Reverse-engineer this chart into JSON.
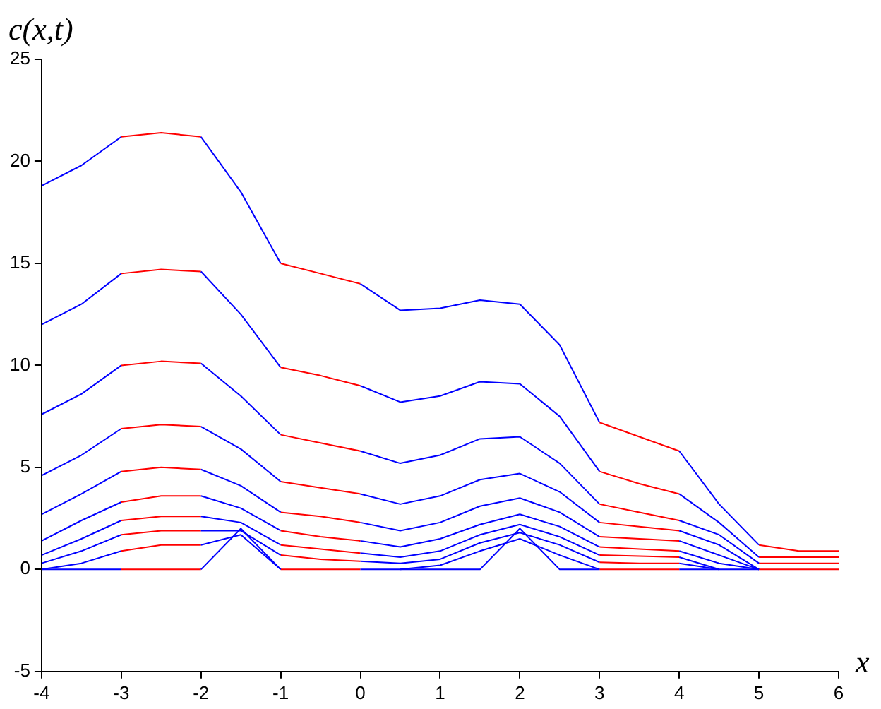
{
  "chart_data": {
    "type": "line",
    "xlabel": "x",
    "ylabel": "c(x,t)",
    "x": [
      -4,
      -3.5,
      -3,
      -2.5,
      -2,
      -1.5,
      -1,
      -0.5,
      0,
      0.5,
      1,
      1.5,
      2,
      2.5,
      3,
      3.5,
      4,
      4.5,
      5,
      5.5,
      6
    ],
    "xlim": [
      -4,
      6
    ],
    "xticks": [
      -4,
      -3,
      -2,
      -1,
      0,
      1,
      2,
      3,
      4,
      5,
      6
    ],
    "ylim": [
      -5,
      25
    ],
    "yticks": [
      -5,
      0,
      5,
      10,
      15,
      20,
      25
    ],
    "grid": false,
    "legend": false,
    "marker": "none",
    "line_style": "solid",
    "series": [
      {
        "color": "#0000ff",
        "values": [
          18.8,
          19.8,
          21.2,
          null,
          21.2,
          18.5,
          15.0,
          null,
          14.0,
          12.7,
          12.8,
          13.2,
          13.0,
          11.0,
          7.2,
          null,
          5.8,
          3.2,
          1.2,
          null,
          null
        ]
      },
      {
        "color": "#ff0000",
        "values": [
          null,
          null,
          21.2,
          21.4,
          21.2,
          null,
          15.0,
          14.5,
          14.0,
          null,
          null,
          null,
          null,
          null,
          7.2,
          6.5,
          5.8,
          null,
          1.2,
          0.9,
          0.9
        ]
      },
      {
        "color": "#0000ff",
        "values": [
          12.0,
          13.0,
          14.5,
          null,
          14.6,
          12.5,
          9.9,
          null,
          9.0,
          8.2,
          8.5,
          9.2,
          9.1,
          7.5,
          4.8,
          null,
          3.7,
          2.3,
          0.6,
          null,
          null
        ]
      },
      {
        "color": "#ff0000",
        "values": [
          null,
          null,
          14.5,
          14.7,
          14.6,
          null,
          9.9,
          9.5,
          9.0,
          null,
          null,
          null,
          null,
          null,
          4.8,
          4.2,
          3.7,
          null,
          0.6,
          0.6,
          0.6
        ]
      },
      {
        "color": "#0000ff",
        "values": [
          7.6,
          8.6,
          10.0,
          null,
          10.1,
          8.5,
          6.6,
          null,
          5.8,
          5.2,
          5.6,
          6.4,
          6.5,
          5.2,
          3.2,
          null,
          2.4,
          1.7,
          0.3,
          null,
          null
        ]
      },
      {
        "color": "#ff0000",
        "values": [
          null,
          null,
          10.0,
          10.2,
          10.1,
          null,
          6.6,
          6.2,
          5.8,
          null,
          null,
          null,
          null,
          null,
          3.2,
          2.8,
          2.4,
          null,
          0.3,
          0.3,
          0.3
        ]
      },
      {
        "color": "#0000ff",
        "values": [
          4.6,
          5.6,
          6.9,
          null,
          7.0,
          5.9,
          4.3,
          null,
          3.7,
          3.2,
          3.6,
          4.4,
          4.7,
          3.8,
          2.3,
          null,
          1.9,
          1.2,
          0,
          null,
          null
        ]
      },
      {
        "color": "#ff0000",
        "values": [
          null,
          null,
          6.9,
          7.1,
          7.0,
          null,
          4.3,
          4.0,
          3.7,
          null,
          null,
          null,
          null,
          null,
          2.3,
          2.1,
          1.9,
          null,
          null,
          null,
          null
        ]
      },
      {
        "color": "#0000ff",
        "values": [
          2.7,
          3.7,
          4.8,
          null,
          4.9,
          4.1,
          2.8,
          null,
          2.3,
          1.9,
          2.3,
          3.1,
          3.5,
          2.8,
          1.6,
          null,
          1.4,
          0.7,
          0,
          null,
          null
        ]
      },
      {
        "color": "#ff0000",
        "values": [
          null,
          null,
          4.8,
          5.0,
          4.9,
          null,
          2.8,
          2.6,
          2.3,
          null,
          null,
          null,
          null,
          null,
          1.6,
          1.5,
          1.4,
          null,
          null,
          null,
          null
        ]
      },
      {
        "color": "#0000ff",
        "values": [
          1.4,
          2.4,
          3.3,
          null,
          3.6,
          3.0,
          1.9,
          null,
          1.4,
          1.1,
          1.5,
          2.2,
          2.7,
          2.1,
          1.1,
          null,
          0.9,
          0.3,
          0,
          null,
          null
        ]
      },
      {
        "color": "#ff0000",
        "values": [
          null,
          null,
          3.3,
          3.6,
          3.6,
          null,
          1.9,
          1.6,
          1.4,
          null,
          null,
          null,
          null,
          null,
          1.1,
          1.0,
          0.9,
          null,
          null,
          null,
          null
        ]
      },
      {
        "color": "#0000ff",
        "values": [
          0.7,
          1.5,
          2.4,
          null,
          2.6,
          2.3,
          1.2,
          null,
          0.8,
          0.6,
          0.9,
          1.7,
          2.2,
          1.6,
          0.7,
          null,
          0.6,
          0,
          null,
          null,
          null
        ]
      },
      {
        "color": "#ff0000",
        "values": [
          null,
          null,
          2.4,
          2.6,
          2.6,
          null,
          1.2,
          1.0,
          0.8,
          null,
          null,
          null,
          null,
          null,
          0.7,
          0.65,
          0.6,
          null,
          null,
          null,
          null
        ]
      },
      {
        "color": "#0000ff",
        "values": [
          0.3,
          0.9,
          1.7,
          null,
          1.9,
          1.9,
          0.7,
          null,
          0.4,
          0.3,
          0.5,
          1.3,
          1.8,
          1.2,
          0.35,
          null,
          0.3,
          0,
          null,
          null,
          null
        ]
      },
      {
        "color": "#ff0000",
        "values": [
          null,
          null,
          1.7,
          1.9,
          1.9,
          null,
          0.7,
          0.5,
          0.4,
          null,
          null,
          null,
          null,
          null,
          0.35,
          0.3,
          0.3,
          null,
          null,
          null,
          null
        ]
      },
      {
        "color": "#0000ff",
        "values": [
          0,
          0.3,
          0.9,
          null,
          1.2,
          1.7,
          0,
          null,
          null,
          0,
          0.2,
          0.9,
          1.5,
          0.7,
          0,
          null,
          null,
          null,
          null,
          null,
          null
        ]
      },
      {
        "color": "#ff0000",
        "values": [
          null,
          null,
          0.9,
          1.2,
          1.2,
          null,
          null,
          null,
          null,
          null,
          null,
          null,
          null,
          null,
          null,
          null,
          null,
          null,
          null,
          null,
          null
        ]
      },
      {
        "color": "#0000ff",
        "values": [
          0,
          0,
          0,
          null,
          0,
          2.0,
          0,
          null,
          0,
          0,
          0,
          0,
          2.0,
          0,
          0,
          null,
          0,
          0,
          0,
          null,
          null
        ]
      },
      {
        "color": "#ff0000",
        "values": [
          null,
          null,
          0,
          0,
          0,
          null,
          0,
          0,
          0,
          null,
          null,
          null,
          null,
          null,
          0,
          0,
          0,
          null,
          0,
          0,
          0
        ]
      }
    ]
  }
}
